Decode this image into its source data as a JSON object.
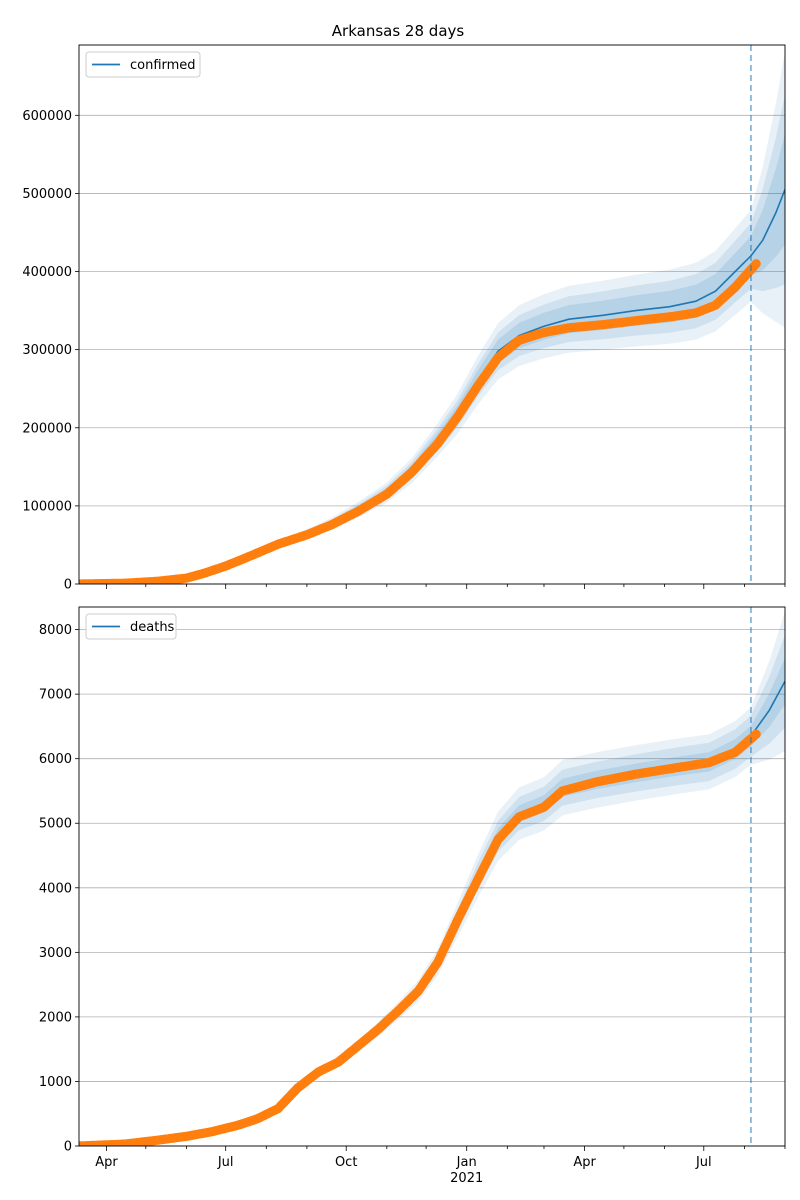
{
  "figure": {
    "title": "Arkansas 28 days"
  },
  "chart_data": [
    {
      "type": "line",
      "legend": "top-left",
      "grid": "horizontal",
      "ylim": [
        0,
        690000
      ],
      "xlim": [
        "2020-03-11",
        "2021-09-01"
      ],
      "forecast_start": "2021-08-06",
      "x_ticks": [
        {
          "date": "2020-04-01",
          "label": "Apr"
        },
        {
          "date": "2020-07-01",
          "label": "Jul"
        },
        {
          "date": "2020-10-01",
          "label": "Oct"
        },
        {
          "date": "2021-01-01",
          "label": "Jan",
          "sub": "2021"
        },
        {
          "date": "2021-04-01",
          "label": "Apr"
        },
        {
          "date": "2021-07-01",
          "label": "Jul"
        }
      ],
      "y_ticks": [
        0,
        100000,
        200000,
        300000,
        400000,
        500000,
        600000
      ],
      "y_tick_labels": [
        "0",
        "100000",
        "200000",
        "300000",
        "400000",
        "500000",
        "600000"
      ],
      "series": [
        {
          "name": "confirmed",
          "color": "#1f77b4",
          "role": "model-median"
        },
        {
          "color": "#ff7f0e",
          "role": "observed"
        }
      ],
      "model": [
        {
          "x": "2020-03-11",
          "y": 0
        },
        {
          "x": "2020-04-15",
          "y": 1500
        },
        {
          "x": "2020-05-10",
          "y": 4500
        },
        {
          "x": "2020-06-01",
          "y": 8500
        },
        {
          "x": "2020-06-15",
          "y": 15000
        },
        {
          "x": "2020-07-01",
          "y": 24000
        },
        {
          "x": "2020-07-20",
          "y": 37000
        },
        {
          "x": "2020-08-10",
          "y": 51000
        },
        {
          "x": "2020-09-01",
          "y": 64000
        },
        {
          "x": "2020-09-20",
          "y": 77000
        },
        {
          "x": "2020-10-10",
          "y": 95000
        },
        {
          "x": "2020-11-01",
          "y": 117000
        },
        {
          "x": "2020-11-20",
          "y": 145000
        },
        {
          "x": "2020-12-10",
          "y": 185000
        },
        {
          "x": "2020-12-25",
          "y": 218000
        },
        {
          "x": "2021-01-10",
          "y": 262000
        },
        {
          "x": "2021-01-25",
          "y": 298000
        },
        {
          "x": "2021-02-10",
          "y": 318000
        },
        {
          "x": "2021-03-01",
          "y": 330000
        },
        {
          "x": "2021-03-20",
          "y": 339000
        },
        {
          "x": "2021-04-15",
          "y": 344000
        },
        {
          "x": "2021-05-10",
          "y": 350000
        },
        {
          "x": "2021-06-05",
          "y": 355000
        },
        {
          "x": "2021-06-25",
          "y": 362000
        },
        {
          "x": "2021-07-10",
          "y": 375000
        },
        {
          "x": "2021-07-25",
          "y": 400000
        },
        {
          "x": "2021-08-06",
          "y": 420000
        },
        {
          "x": "2021-08-15",
          "y": 440000
        },
        {
          "x": "2021-08-25",
          "y": 475000
        },
        {
          "x": "2021-09-01",
          "y": 505000
        }
      ],
      "bands": [
        {
          "opacity": 0.1,
          "spread": [
            [
              "2020-09-01",
              0.1
            ],
            [
              "2021-01-15",
              0.12
            ],
            [
              "2021-08-06",
              0.14
            ],
            [
              "2021-09-01",
              0.35
            ]
          ]
        },
        {
          "opacity": 0.12,
          "spread": [
            [
              "2020-09-01",
              0.07
            ],
            [
              "2021-01-15",
              0.08
            ],
            [
              "2021-08-06",
              0.1
            ],
            [
              "2021-09-01",
              0.24
            ]
          ]
        },
        {
          "opacity": 0.14,
          "spread": [
            [
              "2020-09-01",
              0.04
            ],
            [
              "2021-01-15",
              0.05
            ],
            [
              "2021-08-06",
              0.06
            ],
            [
              "2021-09-01",
              0.14
            ]
          ]
        }
      ],
      "observed": [
        {
          "x": "2020-03-11",
          "y": 0
        },
        {
          "x": "2020-04-15",
          "y": 1000
        },
        {
          "x": "2020-05-10",
          "y": 3500
        },
        {
          "x": "2020-06-01",
          "y": 7500
        },
        {
          "x": "2020-06-15",
          "y": 14000
        },
        {
          "x": "2020-07-01",
          "y": 23000
        },
        {
          "x": "2020-07-20",
          "y": 36000
        },
        {
          "x": "2020-08-10",
          "y": 51000
        },
        {
          "x": "2020-09-01",
          "y": 63000
        },
        {
          "x": "2020-09-20",
          "y": 76000
        },
        {
          "x": "2020-10-10",
          "y": 93000
        },
        {
          "x": "2020-11-01",
          "y": 115000
        },
        {
          "x": "2020-11-20",
          "y": 143000
        },
        {
          "x": "2020-12-10",
          "y": 180000
        },
        {
          "x": "2020-12-25",
          "y": 214000
        },
        {
          "x": "2021-01-10",
          "y": 255000
        },
        {
          "x": "2021-01-25",
          "y": 290000
        },
        {
          "x": "2021-02-10",
          "y": 312000
        },
        {
          "x": "2021-03-01",
          "y": 322000
        },
        {
          "x": "2021-03-20",
          "y": 328000
        },
        {
          "x": "2021-04-15",
          "y": 332000
        },
        {
          "x": "2021-05-10",
          "y": 337000
        },
        {
          "x": "2021-06-05",
          "y": 342000
        },
        {
          "x": "2021-06-25",
          "y": 347000
        },
        {
          "x": "2021-07-10",
          "y": 357000
        },
        {
          "x": "2021-07-25",
          "y": 380000
        },
        {
          "x": "2021-08-10",
          "y": 410000
        }
      ]
    },
    {
      "type": "line",
      "legend": "top-left",
      "grid": "horizontal",
      "ylim": [
        0,
        8350
      ],
      "xlim": [
        "2020-03-11",
        "2021-09-01"
      ],
      "forecast_start": "2021-08-06",
      "y_ticks": [
        0,
        1000,
        2000,
        3000,
        4000,
        5000,
        6000,
        7000,
        8000
      ],
      "y_tick_labels": [
        "0",
        "1000",
        "2000",
        "3000",
        "4000",
        "5000",
        "6000",
        "7000",
        "8000"
      ],
      "series": [
        {
          "name": "deaths",
          "color": "#1f77b4",
          "role": "model-median"
        },
        {
          "color": "#ff7f0e",
          "role": "observed"
        }
      ],
      "model": [
        {
          "x": "2020-03-11",
          "y": 0
        },
        {
          "x": "2020-04-15",
          "y": 30
        },
        {
          "x": "2020-05-10",
          "y": 90
        },
        {
          "x": "2020-06-01",
          "y": 150
        },
        {
          "x": "2020-06-20",
          "y": 220
        },
        {
          "x": "2020-07-10",
          "y": 320
        },
        {
          "x": "2020-07-25",
          "y": 420
        },
        {
          "x": "2020-08-10",
          "y": 580
        },
        {
          "x": "2020-08-25",
          "y": 900
        },
        {
          "x": "2020-09-10",
          "y": 1150
        },
        {
          "x": "2020-09-25",
          "y": 1300
        },
        {
          "x": "2020-10-10",
          "y": 1550
        },
        {
          "x": "2020-10-25",
          "y": 1800
        },
        {
          "x": "2020-11-10",
          "y": 2100
        },
        {
          "x": "2020-11-25",
          "y": 2400
        },
        {
          "x": "2020-12-10",
          "y": 2850
        },
        {
          "x": "2020-12-25",
          "y": 3500
        },
        {
          "x": "2021-01-10",
          "y": 4200
        },
        {
          "x": "2021-01-25",
          "y": 4800
        },
        {
          "x": "2021-02-10",
          "y": 5150
        },
        {
          "x": "2021-03-01",
          "y": 5300
        },
        {
          "x": "2021-03-15",
          "y": 5550
        },
        {
          "x": "2021-04-10",
          "y": 5670
        },
        {
          "x": "2021-05-10",
          "y": 5780
        },
        {
          "x": "2021-06-10",
          "y": 5880
        },
        {
          "x": "2021-07-05",
          "y": 5950
        },
        {
          "x": "2021-07-25",
          "y": 6150
        },
        {
          "x": "2021-08-06",
          "y": 6350
        },
        {
          "x": "2021-08-20",
          "y": 6750
        },
        {
          "x": "2021-09-01",
          "y": 7200
        }
      ],
      "bands": [
        {
          "opacity": 0.1,
          "spread": [
            [
              "2020-09-01",
              0.05
            ],
            [
              "2021-01-15",
              0.08
            ],
            [
              "2021-08-06",
              0.07
            ],
            [
              "2021-09-01",
              0.15
            ]
          ]
        },
        {
          "opacity": 0.12,
          "spread": [
            [
              "2020-09-01",
              0.03
            ],
            [
              "2021-01-15",
              0.05
            ],
            [
              "2021-08-06",
              0.05
            ],
            [
              "2021-09-01",
              0.1
            ]
          ]
        },
        {
          "opacity": 0.14,
          "spread": [
            [
              "2020-09-01",
              0.015
            ],
            [
              "2021-01-15",
              0.025
            ],
            [
              "2021-08-06",
              0.025
            ],
            [
              "2021-09-01",
              0.05
            ]
          ]
        }
      ],
      "observed": [
        {
          "x": "2020-03-11",
          "y": 0
        },
        {
          "x": "2020-04-15",
          "y": 30
        },
        {
          "x": "2020-05-10",
          "y": 90
        },
        {
          "x": "2020-06-01",
          "y": 150
        },
        {
          "x": "2020-06-20",
          "y": 220
        },
        {
          "x": "2020-07-10",
          "y": 320
        },
        {
          "x": "2020-07-25",
          "y": 420
        },
        {
          "x": "2020-08-10",
          "y": 580
        },
        {
          "x": "2020-08-25",
          "y": 900
        },
        {
          "x": "2020-09-10",
          "y": 1150
        },
        {
          "x": "2020-09-25",
          "y": 1300
        },
        {
          "x": "2020-10-10",
          "y": 1550
        },
        {
          "x": "2020-10-25",
          "y": 1800
        },
        {
          "x": "2020-11-10",
          "y": 2100
        },
        {
          "x": "2020-11-25",
          "y": 2400
        },
        {
          "x": "2020-12-10",
          "y": 2850
        },
        {
          "x": "2020-12-25",
          "y": 3500
        },
        {
          "x": "2021-01-10",
          "y": 4150
        },
        {
          "x": "2021-01-25",
          "y": 4750
        },
        {
          "x": "2021-02-10",
          "y": 5100
        },
        {
          "x": "2021-03-01",
          "y": 5250
        },
        {
          "x": "2021-03-15",
          "y": 5500
        },
        {
          "x": "2021-04-10",
          "y": 5640
        },
        {
          "x": "2021-05-10",
          "y": 5760
        },
        {
          "x": "2021-06-10",
          "y": 5860
        },
        {
          "x": "2021-07-05",
          "y": 5940
        },
        {
          "x": "2021-07-25",
          "y": 6100
        },
        {
          "x": "2021-08-10",
          "y": 6380
        }
      ]
    }
  ]
}
